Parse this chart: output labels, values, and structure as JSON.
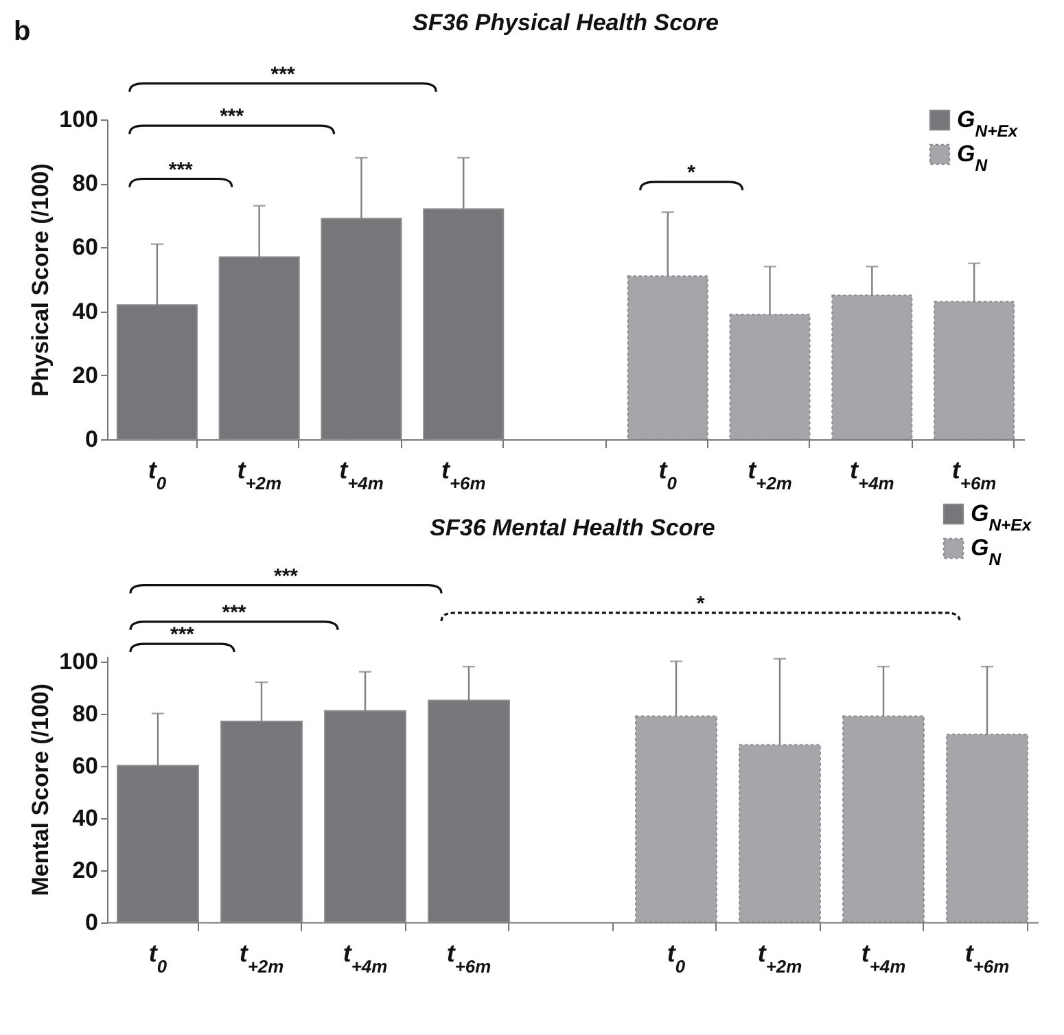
{
  "chart_data": [
    {
      "type": "bar",
      "title": "SF36 Physical Health Score",
      "ylabel": "Physical Score (/100)",
      "categories": [
        "t$_{0}$",
        "t$_{+2m}$",
        "t$_{+4m}$",
        "t$_{+6m}$",
        null,
        "t$_{0}$",
        "t$_{+2m}$",
        "t$_{+4m}$",
        "t$_{+6m}$"
      ],
      "series": [
        {
          "name": "G$_{N+Ex}$",
          "color": "#76777b",
          "values": [
            42,
            57,
            69,
            72,
            null,
            null,
            null,
            null,
            null
          ],
          "errors": [
            [
              42,
              61
            ],
            [
              57,
              73
            ],
            [
              69,
              88
            ],
            [
              72,
              88
            ],
            null,
            null,
            null,
            null,
            null
          ]
        },
        {
          "name": "G$_{N}$",
          "color": "#a5a6aa",
          "line_style": "dotted",
          "values": [
            null,
            null,
            null,
            null,
            null,
            51,
            39,
            45,
            43
          ],
          "errors": [
            null,
            null,
            null,
            null,
            null,
            [
              51,
              71
            ],
            [
              39,
              54
            ],
            [
              45,
              54
            ],
            [
              43,
              55
            ]
          ]
        }
      ],
      "ylim": [
        0,
        100
      ],
      "yticks": [
        0,
        20,
        40,
        60,
        80,
        100
      ],
      "legend": "top right",
      "annotations": [
        "b",
        "***",
        "***",
        "***",
        "*"
      ]
    },
    {
      "type": "bar",
      "title": "SF36 Mental Health Score",
      "ylabel": "Mental Score (/100)",
      "categories": [
        "t$_{0}$",
        "t$_{+2m}$",
        "t$_{+4m}$",
        "t$_{+6m}$",
        null,
        "t$_{0}$",
        "t$_{+2m}$",
        "t$_{+4m}$",
        "t$_{+6m}$"
      ],
      "series": [
        {
          "name": "G$_{N+Ex}$",
          "color": "#76777b",
          "values": [
            60,
            77,
            81,
            85,
            null,
            null,
            null,
            null,
            null
          ],
          "errors": [
            [
              60,
              80
            ],
            [
              77,
              92
            ],
            [
              81,
              96
            ],
            [
              85,
              98
            ],
            null,
            null,
            null,
            null,
            null
          ]
        },
        {
          "name": "G$_{N}$",
          "color": "#a5a6aa",
          "line_style": "dotted",
          "values": [
            null,
            null,
            null,
            null,
            null,
            79,
            68,
            79,
            72
          ],
          "errors": [
            null,
            null,
            null,
            null,
            null,
            [
              79,
              100
            ],
            [
              68,
              101
            ],
            [
              79,
              98
            ],
            [
              72,
              98
            ]
          ]
        }
      ],
      "ylim": [
        0,
        102
      ],
      "yticks": [
        0,
        20,
        40,
        60,
        80,
        100
      ],
      "legend": "top right",
      "annotations": [
        "***",
        "***",
        "***",
        "*"
      ]
    }
  ]
}
